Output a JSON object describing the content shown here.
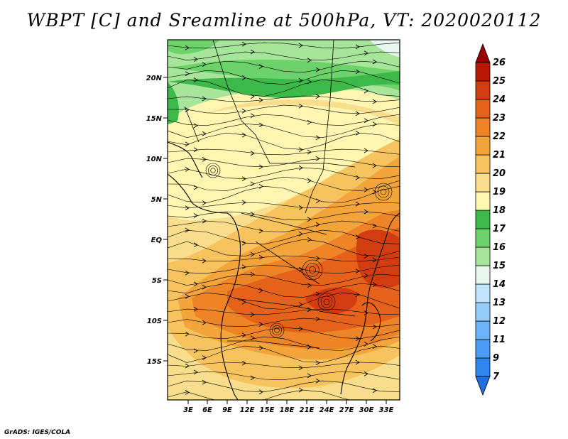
{
  "title": "WBPT [C] and Sreamline at 500hPa, VT: 2020020112",
  "credit": "GrADS: IGES/COLA",
  "map": {
    "lat_labels": [
      "20N",
      "15N",
      "10N",
      "5N",
      "EQ",
      "5S",
      "10S",
      "15S"
    ],
    "lon_labels": [
      "3E",
      "6E",
      "9E",
      "12E",
      "15E",
      "18E",
      "21E",
      "24E",
      "27E",
      "30E",
      "33E"
    ]
  },
  "colorbar": {
    "levels": [
      "7",
      "9",
      "11",
      "12",
      "13",
      "14",
      "15",
      "16",
      "17",
      "18",
      "19",
      "20",
      "21",
      "22",
      "23",
      "24",
      "25",
      "26"
    ],
    "colors": [
      "#1e6fe0",
      "#2f86ee",
      "#4b9cf4",
      "#6cb2f8",
      "#96ccfb",
      "#c2e4fc",
      "#e6f6ef",
      "#a7e59a",
      "#6ed26a",
      "#3db94a",
      "#fdf5b0",
      "#f8de8c",
      "#f6c35e",
      "#f3a53b",
      "#ee8428",
      "#e5621a",
      "#d23c10",
      "#b81806",
      "#990000"
    ]
  }
}
